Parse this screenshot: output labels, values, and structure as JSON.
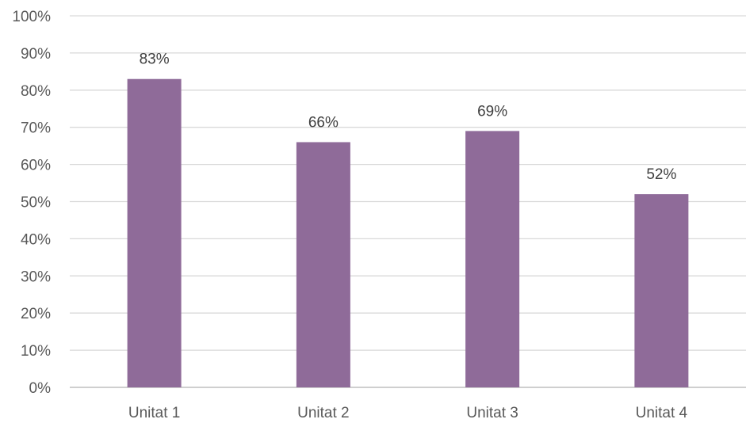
{
  "chart_data": {
    "type": "bar",
    "title": "",
    "xlabel": "",
    "ylabel": "",
    "categories": [
      "Unitat 1",
      "Unitat 2",
      "Unitat 3",
      "Unitat 4"
    ],
    "values": [
      83,
      66,
      69,
      52
    ],
    "value_labels": [
      "83%",
      "66%",
      "69%",
      "52%"
    ],
    "ylim": [
      0,
      100
    ],
    "yticks": [
      0,
      10,
      20,
      30,
      40,
      50,
      60,
      70,
      80,
      90,
      100
    ],
    "ytick_labels": [
      "0%",
      "10%",
      "20%",
      "30%",
      "40%",
      "50%",
      "60%",
      "70%",
      "80%",
      "90%",
      "100%"
    ],
    "grid": true,
    "legend": "none",
    "bar_color": "#8f6b99"
  }
}
